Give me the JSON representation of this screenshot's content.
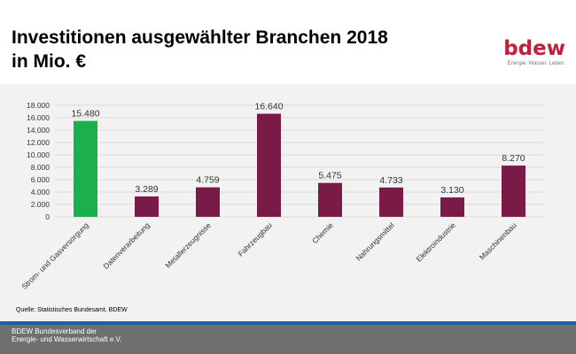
{
  "header": {
    "title_line1": "Investitionen ausgewählter Branchen 2018",
    "title_line2": "in Mio. €"
  },
  "logo": {
    "wordmark": "bdew",
    "tagline": "Energie. Wasser. Leben.",
    "color": "#c0203c"
  },
  "source": "Quelle: Statistisches Bundesamt, BDEW",
  "footer": {
    "line1": "BDEW Bundesverband der",
    "line2": "Energie- und Wasserwirtschaft e.V."
  },
  "colors": {
    "highlight_bar": "#1cb04c",
    "default_bar": "#7a1a46",
    "footer_stripe": "#1f5fa8",
    "footer_bg": "#6f6f6f",
    "panel_bg": "#f2f2f2"
  },
  "chart_data": {
    "type": "bar",
    "title": "Investitionen ausgewählter Branchen 2018 in Mio. €",
    "categories": [
      "Strom- und Gasversorgung",
      "Datenverarbeitung",
      "Metallerzeugnisse",
      "Fahrzeugbau",
      "Chemie",
      "Nahrungsmittel",
      "Elektroindustrie",
      "Maschinenbau"
    ],
    "values": [
      15480,
      3289,
      4759,
      16640,
      5475,
      4733,
      3130,
      8270
    ],
    "value_labels": [
      "15.480",
      "3.289",
      "4.759",
      "16.640",
      "5.475",
      "4.733",
      "3.130",
      "8.270"
    ],
    "bar_colors": [
      "#1cb04c",
      "#7a1a46",
      "#7a1a46",
      "#7a1a46",
      "#7a1a46",
      "#7a1a46",
      "#7a1a46",
      "#7a1a46"
    ],
    "yticks": [
      0,
      2000,
      4000,
      6000,
      8000,
      10000,
      12000,
      14000,
      16000,
      18000
    ],
    "ytick_labels": [
      "0",
      "2.000",
      "4.000",
      "6.000",
      "8.000",
      "10.000",
      "12.000",
      "14.000",
      "16.000",
      "18.000"
    ],
    "ylim": [
      0,
      18000
    ],
    "xlabel": "",
    "ylabel": "",
    "grid": true,
    "legend": false
  }
}
